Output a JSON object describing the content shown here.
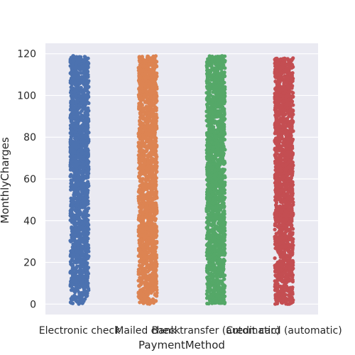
{
  "chart_data": {
    "type": "scatter",
    "style": "strip plot with jitter",
    "title": "",
    "xlabel": "PaymentMethod",
    "ylabel": "MonthlyCharges",
    "ylim": [
      -5,
      125
    ],
    "yticks": [
      0,
      20,
      40,
      60,
      80,
      100,
      120
    ],
    "grid": true,
    "categories": [
      "Electronic check",
      "Mailed check",
      "Bank transfer (automatic)",
      "Credit card (automatic)"
    ],
    "series": [
      {
        "category": "Electronic check",
        "color": "#4c72b0",
        "min": 0,
        "max": 119
      },
      {
        "category": "Mailed check",
        "color": "#dd8452",
        "min": 0,
        "max": 119
      },
      {
        "category": "Bank transfer (automatic)",
        "color": "#55a868",
        "min": 0,
        "max": 119
      },
      {
        "category": "Credit card (automatic)",
        "color": "#c44e52",
        "min": 0,
        "max": 118
      }
    ]
  }
}
